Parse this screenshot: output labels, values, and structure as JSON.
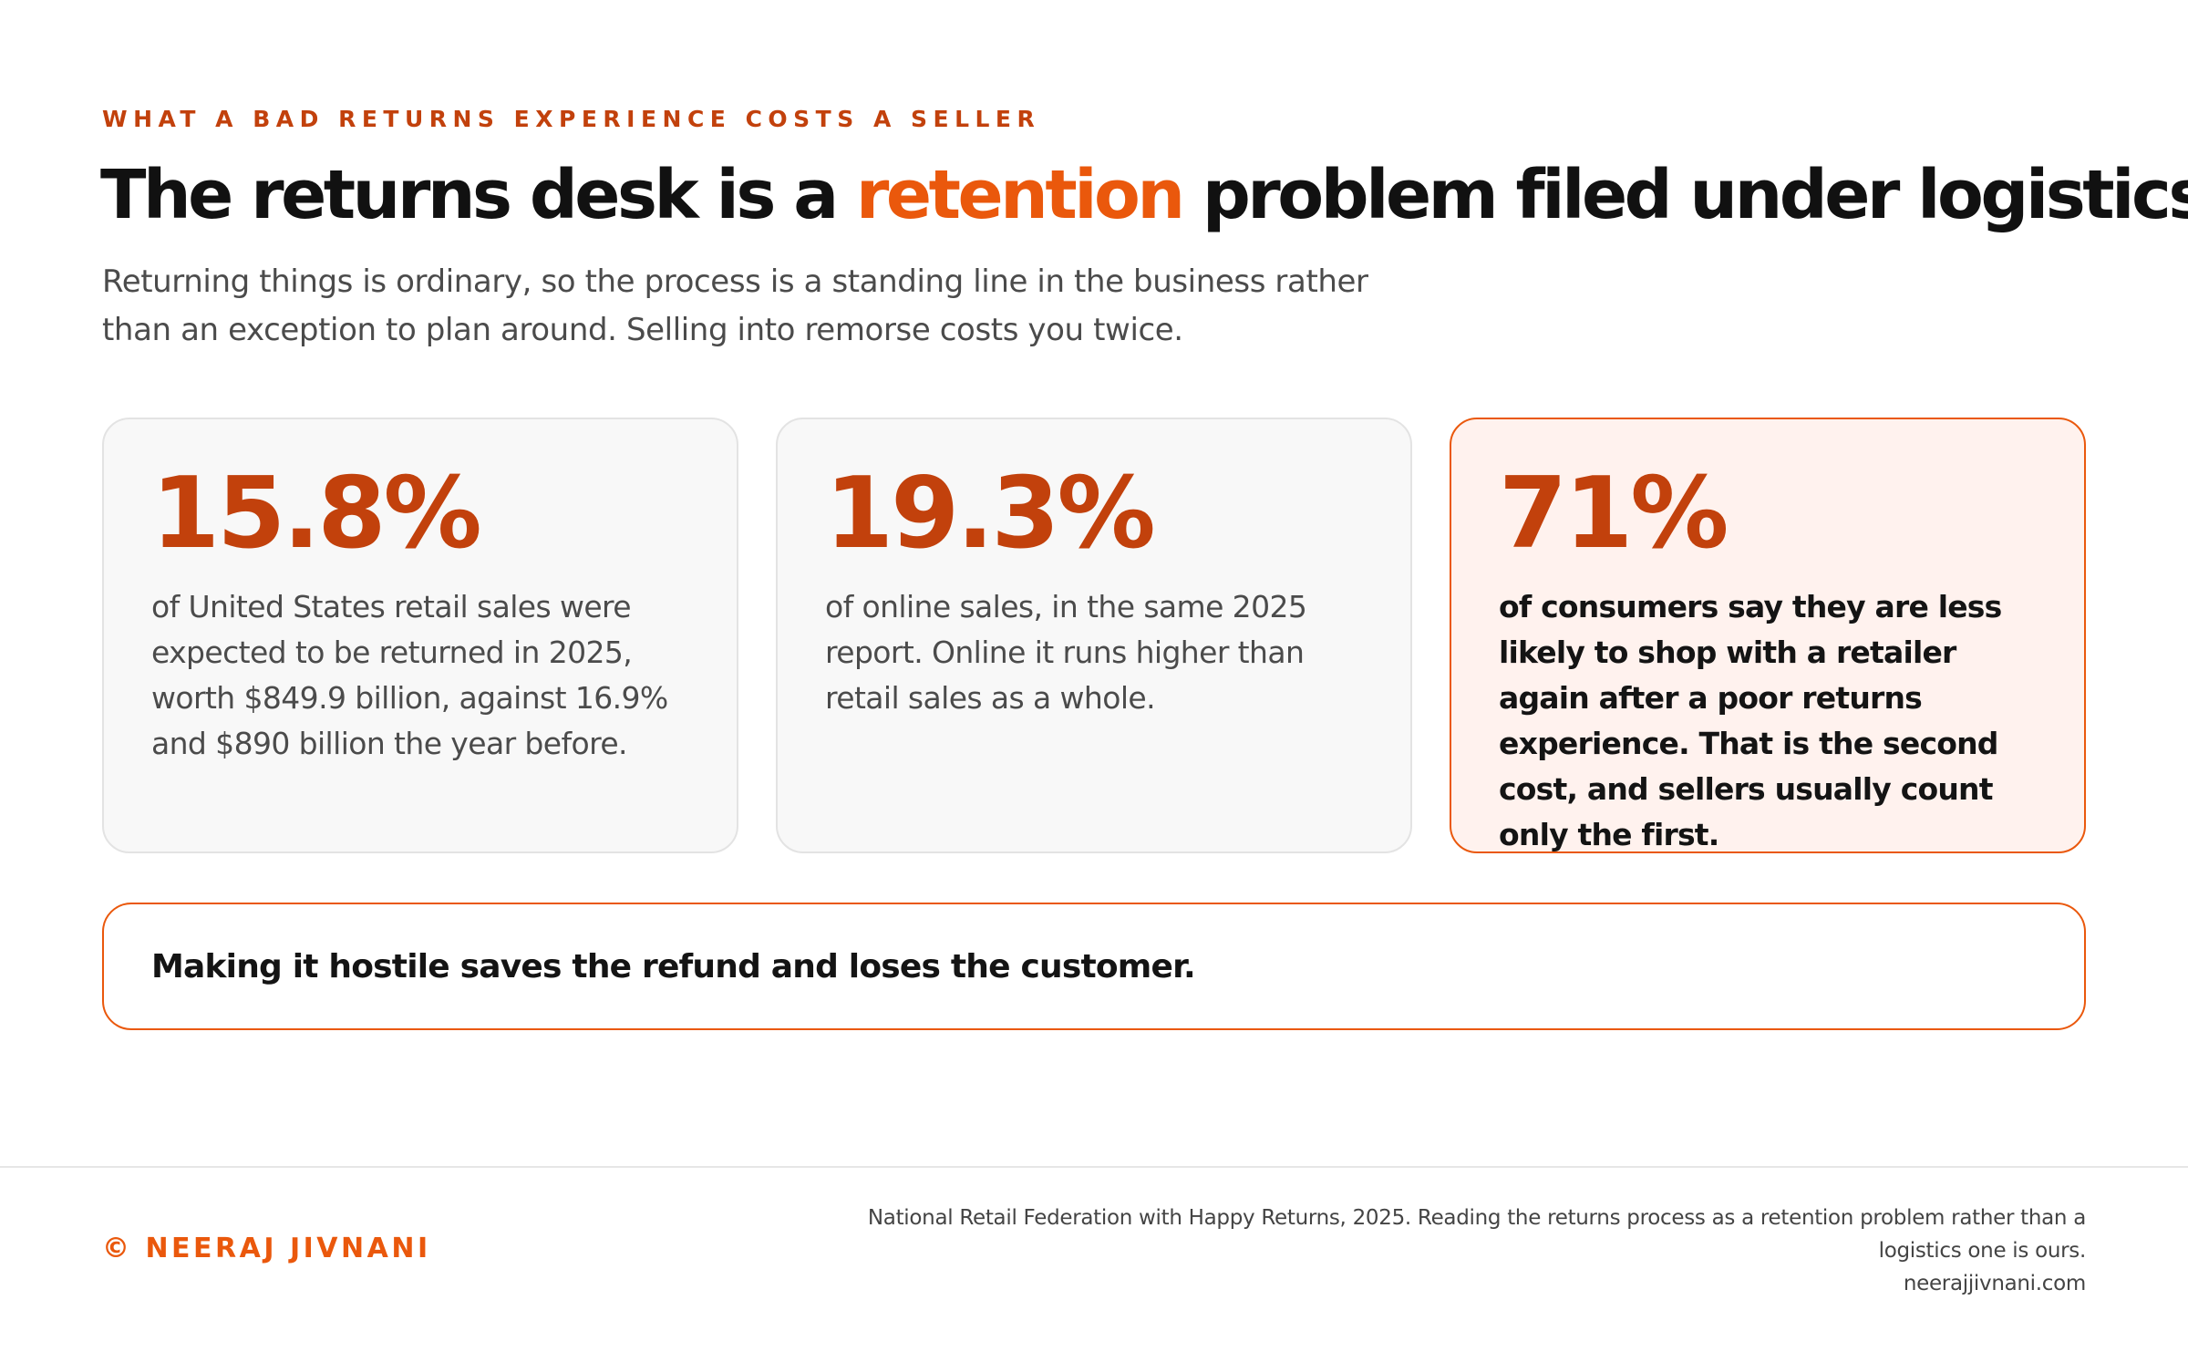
{
  "eyebrow": "WHAT A BAD RETURNS EXPERIENCE COSTS A SELLER",
  "headline": {
    "before": "The returns desk is a ",
    "accent": "retention",
    "after": " problem filed under logistics."
  },
  "subtitle": "Returning things is ordinary, so the process is a standing line in the business rather than an exception to plan around. Selling into remorse costs you twice.",
  "cards": [
    {
      "stat": "15.8%",
      "description": "of United States retail sales were expected to be returned in 2025, worth $849.9 billion, against 16.9% and $890 billion the year before."
    },
    {
      "stat": "19.3%",
      "description": "of online sales, in the same 2025 report. Online it runs higher than retail sales as a whole."
    },
    {
      "stat": "71%",
      "description": "of consumers say they are less likely to shop with a retailer again after a poor returns experience. That is the second cost, and sellers usually count only the first."
    }
  ],
  "callout": "Making it hostile saves the refund and loses the customer.",
  "footer": {
    "brand": "© NEERAJ JIVNANI",
    "source_line1": "National Retail Federation with Happy Returns, 2025. Reading the returns process as a retention problem rather than a",
    "source_line2": "logistics one is ours.",
    "website": "neerajjivnani.com"
  },
  "colors": {
    "accent": "#ea580c",
    "accent_dark": "#c2410c",
    "highlight_card_bg": "#fff2ee",
    "card_bg": "#f8f8f8",
    "text": "#141414",
    "muted_text": "#4b4b4b"
  }
}
